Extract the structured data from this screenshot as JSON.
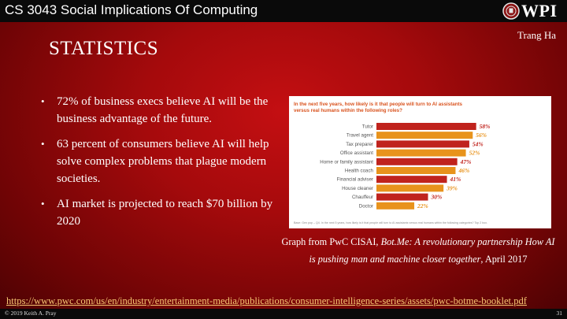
{
  "header": {
    "course_title": "CS 3043 Social Implications Of Computing",
    "logo_text": "WPI"
  },
  "slide": {
    "author": "Trang Ha",
    "title": "STATISTICS",
    "bullets": [
      "72% of business execs believe AI will be the business advantage of the future.",
      "63 percent of consumers believe AI will help solve complex problems that plague modern societies.",
      "AI market is projected to reach $70 billion by 2020"
    ],
    "caption_prefix": "Graph from PwC CISAI, ",
    "caption_italic": "Bot.Me: A revolutionary partnership How AI is pushing man and machine closer together",
    "caption_suffix": ", April 2017",
    "source_url": "https://www.pwc.com/us/en/industry/entertainment-media/publications/consumer-intelligence-series/assets/pwc-botme-booklet.pdf"
  },
  "footer": {
    "copyright": "© 2019 Keith A. Pray",
    "page_number": "31"
  },
  "colors": {
    "bar_dark": "#c0231d",
    "bar_light": "#e8931c",
    "chart_title": "#d9531e",
    "value_label": "#c0231d"
  },
  "chart_data": {
    "type": "bar",
    "orientation": "horizontal",
    "title": "In the next five years, how likely is it that people will turn to AI assistants versus real humans within the following roles?",
    "categories": [
      "Tutor",
      "Travel agent",
      "Tax preparer",
      "Office assistant",
      "Home or family assistant",
      "Health coach",
      "Financial adviser",
      "House cleaner",
      "Chauffeur",
      "Doctor"
    ],
    "values": [
      58,
      56,
      54,
      52,
      47,
      46,
      41,
      39,
      30,
      22
    ],
    "value_labels": [
      "58%",
      "56%",
      "54%",
      "52%",
      "47%",
      "46%",
      "41%",
      "39%",
      "30%",
      "22%"
    ],
    "xlim": [
      0,
      100
    ],
    "footnote": "Base: Gen pop – Q4. In the next 5 years, how likely is it that people will turn to AI assistants versus real humans within the following categories? Top 2 box."
  }
}
